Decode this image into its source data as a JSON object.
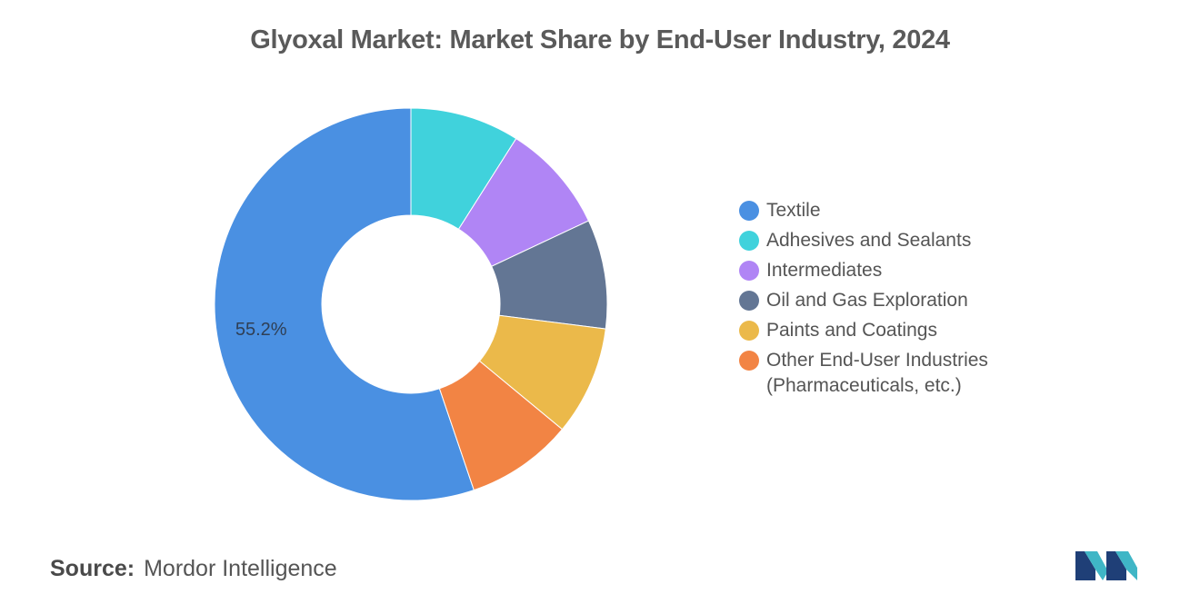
{
  "header": {
    "title": "Glyoxal Market: Market Share by End-User Industry, 2024"
  },
  "chart_data": {
    "type": "pie",
    "variant": "donut",
    "title": "Glyoxal Market: Market Share by End-User Industry, 2024",
    "unit": "%",
    "slices": [
      {
        "label": "Textile",
        "value": 55.2,
        "color": "#4a90e2",
        "data_label": "55.2%"
      },
      {
        "label": "Adhesives and Sealants",
        "value": 9.0,
        "color": "#40d2dc"
      },
      {
        "label": "Intermediates",
        "value": 9.0,
        "color": "#b085f5"
      },
      {
        "label": "Oil and Gas Exploration",
        "value": 9.0,
        "color": "#637694"
      },
      {
        "label": "Paints and Coatings",
        "value": 9.0,
        "color": "#ebb94a"
      },
      {
        "label": "Other End-User Industries (Pharmaceuticals, etc.)",
        "value": 8.8,
        "color": "#f28444"
      }
    ],
    "legend_position": "right"
  },
  "legend": {
    "items": [
      {
        "label": "Textile",
        "color": "#4a90e2"
      },
      {
        "label": "Adhesives and Sealants",
        "color": "#40d2dc"
      },
      {
        "label": "Intermediates",
        "color": "#b085f5"
      },
      {
        "label": "Oil and Gas Exploration",
        "color": "#637694"
      },
      {
        "label": "Paints and Coatings",
        "color": "#ebb94a"
      },
      {
        "label": "Other End-User Industries\n(Pharmaceuticals, etc.)",
        "color": "#f28444"
      }
    ]
  },
  "footer": {
    "source_label": "Source:",
    "source_value": "Mordor Intelligence",
    "logo_icon": "mordor-intelligence-logo-icon",
    "logo_colors": [
      "#1f3f77",
      "#3fb6c6"
    ]
  }
}
